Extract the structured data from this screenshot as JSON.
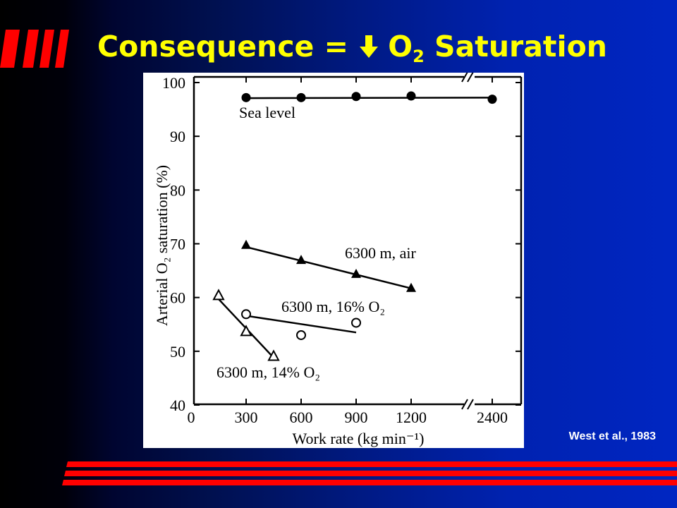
{
  "slide": {
    "title_main": "Consequence = ",
    "title_o": "O",
    "title_sub": "2",
    "title_end": " Saturation",
    "arrow_icon": "arrow-down-icon",
    "citation": "West et al., 1983",
    "colors": {
      "title": "#ffff00",
      "accent_stripes": "#ff0000",
      "background_start": "#000000",
      "background_end": "#0026c2",
      "citation": "#ffffff"
    }
  },
  "chart_data": {
    "type": "scatter",
    "ylabel": "Arterial O₂ saturation (%)",
    "xlabel": "Work rate (kg min⁻¹)",
    "ylim": [
      40,
      100
    ],
    "y_ticks": [
      "100",
      "90",
      "80",
      "70",
      "60",
      "50",
      "40"
    ],
    "x_ticks": [
      "0",
      "300",
      "600",
      "900",
      "1200",
      "2400"
    ],
    "x_axis_break": "between 1200 and 2400",
    "grid": false,
    "legend": "inline labels",
    "series": [
      {
        "name": "Sea level",
        "marker": "filled-circle",
        "x": [
          300,
          600,
          900,
          1200,
          2400
        ],
        "y": [
          97.2,
          97.2,
          97.4,
          97.5,
          96.9
        ],
        "fit_line": [
          [
            300,
            97.1
          ],
          [
            2400,
            97.2
          ]
        ]
      },
      {
        "name": "6300 m, air",
        "marker": "filled-triangle",
        "x": [
          300,
          600,
          900,
          1200
        ],
        "y": [
          69.7,
          66.9,
          64.3,
          61.7
        ],
        "fit_line": [
          [
            300,
            69.4
          ],
          [
            1200,
            61.7
          ]
        ]
      },
      {
        "name": "6300 m, 16% O₂",
        "marker": "open-circle",
        "x": [
          300,
          600,
          900
        ],
        "y": [
          56.9,
          53.0,
          55.3
        ],
        "fit_line": [
          [
            300,
            56.6
          ],
          [
            900,
            53.5
          ]
        ]
      },
      {
        "name": "6300 m, 14% O₂",
        "marker": "open-triangle",
        "x": [
          150,
          300,
          450
        ],
        "y": [
          60.3,
          53.6,
          49.0
        ],
        "fit_line": [
          [
            150,
            59.7
          ],
          [
            450,
            48.8
          ]
        ]
      }
    ]
  }
}
